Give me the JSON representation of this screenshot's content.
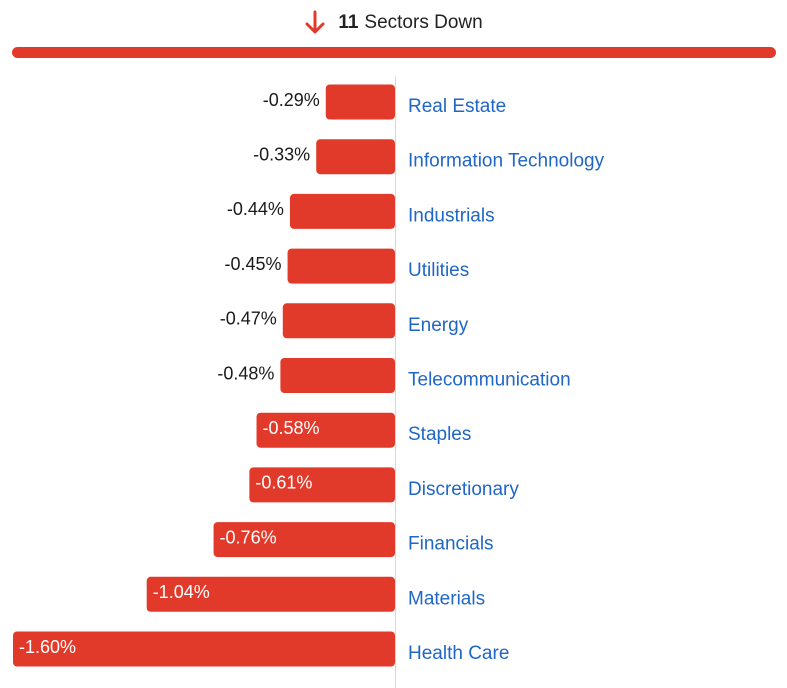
{
  "header": {
    "count": "11",
    "label": "Sectors Down",
    "icon": "arrow-down-icon"
  },
  "colors": {
    "negative": "#e23a2a",
    "category_text": "#1f66c6",
    "value_text_outside": "#1a1a1a",
    "value_text_inside": "#ffffff",
    "axis": "#d8d8d8"
  },
  "chart_data": {
    "type": "bar",
    "orientation": "horizontal",
    "title": "",
    "xlabel": "",
    "ylabel": "",
    "categories": [
      "Real Estate",
      "Information Technology",
      "Industrials",
      "Utilities",
      "Energy",
      "Telecommunication",
      "Staples",
      "Discretionary",
      "Financials",
      "Materials",
      "Health Care"
    ],
    "values": [
      -0.29,
      -0.33,
      -0.44,
      -0.45,
      -0.47,
      -0.48,
      -0.58,
      -0.61,
      -0.76,
      -1.04,
      -1.6
    ],
    "value_labels": [
      "-0.29%",
      "-0.33%",
      "-0.44%",
      "-0.45%",
      "-0.47%",
      "-0.48%",
      "-0.58%",
      "-0.61%",
      "-0.76%",
      "-1.04%",
      "-1.60%"
    ],
    "xlim": [
      -1.6,
      0
    ],
    "grid": false,
    "legend": "none"
  }
}
